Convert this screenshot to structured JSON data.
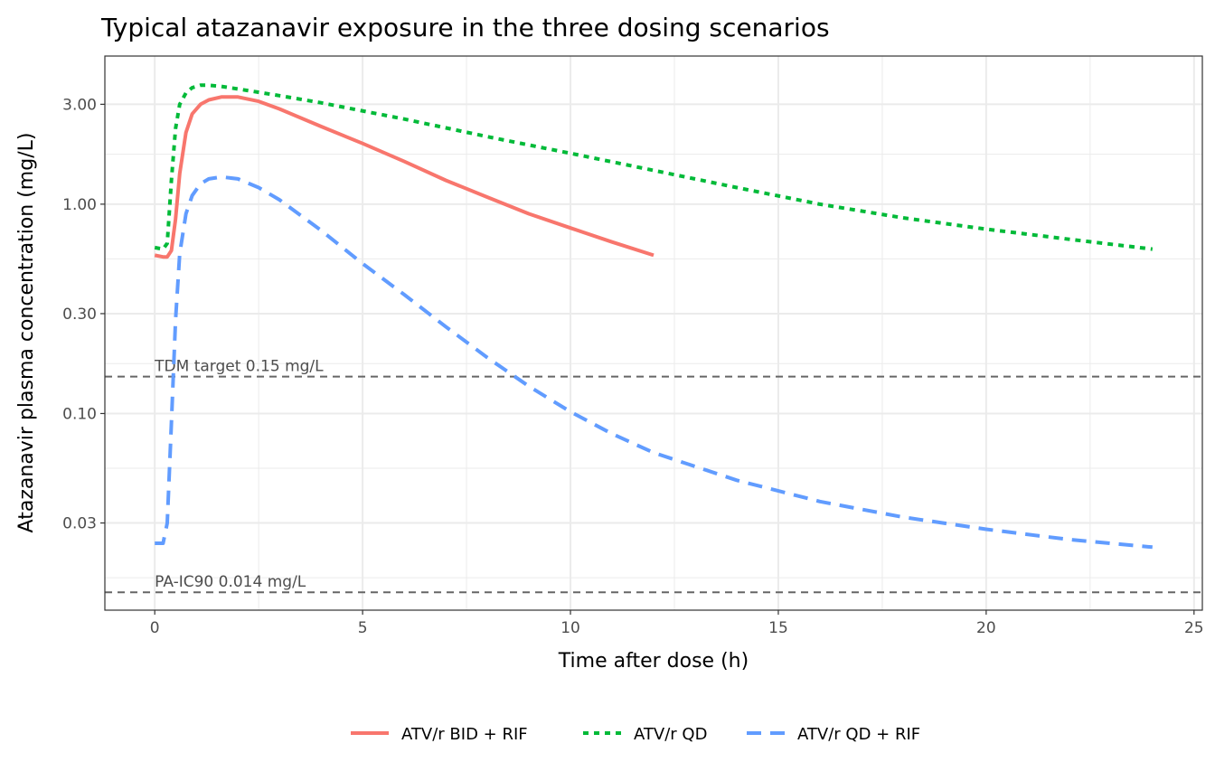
{
  "chart_data": {
    "type": "line",
    "title": "Typical atazanavir exposure in the three dosing scenarios",
    "xlabel": "Time after dose (h)",
    "ylabel": "Atazanavir plasma concentration (mg/L)",
    "y_scale": "log10",
    "xlim": [
      -1.2,
      25.2
    ],
    "ylim": [
      0.0115,
      5.1
    ],
    "x_ticks": [
      0,
      5,
      10,
      15,
      20,
      25
    ],
    "x_tick_labels": [
      "0",
      "5",
      "10",
      "15",
      "20",
      "25"
    ],
    "y_ticks": [
      0.03,
      0.1,
      0.3,
      1.0,
      3.0
    ],
    "y_tick_labels": [
      "0.03",
      "0.10",
      "0.30",
      "1.00",
      "3.00"
    ],
    "grid": true,
    "legend_position": "bottom",
    "series": [
      {
        "name": "ATV/r BID + RIF",
        "color": "#F8766D",
        "linestyle": "solid",
        "x": [
          0,
          0.2,
          0.3,
          0.4,
          0.5,
          0.6,
          0.75,
          0.9,
          1.1,
          1.3,
          1.6,
          2,
          2.5,
          3,
          4,
          5,
          6,
          7,
          8,
          9,
          10,
          11,
          12
        ],
        "y": [
          0.57,
          0.56,
          0.56,
          0.6,
          0.85,
          1.4,
          2.2,
          2.7,
          3.0,
          3.15,
          3.25,
          3.25,
          3.1,
          2.85,
          2.35,
          1.95,
          1.6,
          1.3,
          1.08,
          0.9,
          0.77,
          0.66,
          0.57
        ]
      },
      {
        "name": "ATV/r QD",
        "color": "#00BA38",
        "linestyle": "dotted",
        "x": [
          0,
          0.2,
          0.3,
          0.4,
          0.5,
          0.6,
          0.75,
          0.9,
          1.1,
          1.3,
          1.6,
          2,
          3,
          4,
          6,
          8,
          10,
          12,
          14,
          16,
          18,
          20,
          22,
          24
        ],
        "y": [
          0.62,
          0.61,
          0.65,
          1.3,
          2.3,
          3.0,
          3.4,
          3.6,
          3.7,
          3.7,
          3.65,
          3.55,
          3.3,
          3.05,
          2.55,
          2.1,
          1.75,
          1.45,
          1.2,
          1.0,
          0.86,
          0.76,
          0.68,
          0.61
        ]
      },
      {
        "name": "ATV/r QD + RIF",
        "color": "#619CFF",
        "linestyle": "dashed",
        "x": [
          0,
          0.2,
          0.3,
          0.4,
          0.5,
          0.6,
          0.75,
          0.9,
          1.1,
          1.3,
          1.6,
          2,
          2.5,
          3,
          4,
          5,
          6,
          7,
          8,
          9,
          10,
          11,
          12,
          14,
          16,
          18,
          20,
          22,
          24
        ],
        "y": [
          0.024,
          0.024,
          0.03,
          0.09,
          0.28,
          0.58,
          0.9,
          1.1,
          1.25,
          1.32,
          1.35,
          1.32,
          1.2,
          1.05,
          0.75,
          0.52,
          0.37,
          0.26,
          0.185,
          0.135,
          0.102,
          0.08,
          0.065,
          0.048,
          0.038,
          0.032,
          0.028,
          0.025,
          0.023
        ]
      }
    ],
    "reference_lines": [
      {
        "y": 0.15,
        "label": "TDM target 0.15 mg/L",
        "color": "#666666",
        "linestyle": "dashed"
      },
      {
        "y": 0.014,
        "label": "PA-IC90 0.014 mg/L",
        "color": "#666666",
        "linestyle": "dashed"
      }
    ]
  }
}
